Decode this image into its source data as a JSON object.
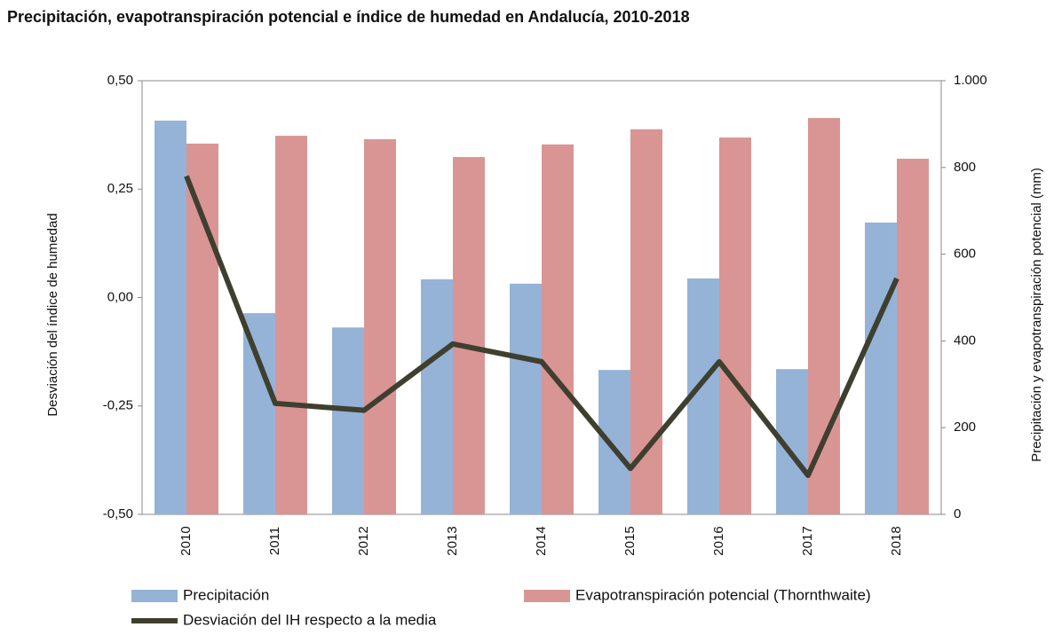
{
  "chart_data": {
    "type": "bar",
    "title": "Precipitación, evapotranspiración potencial e índice de humedad en Andalucía, 2010-2018",
    "ylabel": "Desviación del índice de humedad",
    "y2label": "Precipitación y evapotranspiración potencial (mm)",
    "categories": [
      "2010",
      "2011",
      "2012",
      "2013",
      "2014",
      "2015",
      "2016",
      "2017",
      "2018"
    ],
    "series": [
      {
        "name": "Precipitación",
        "type": "bar",
        "axis": "y2",
        "color": "#95b3d7",
        "values": [
          908,
          464,
          431,
          542,
          532,
          333,
          544,
          335,
          673
        ]
      },
      {
        "name": "Evapotranspiración potencial (Thornthwaite)",
        "type": "bar",
        "axis": "y2",
        "color": "#d99594",
        "values": [
          855,
          873,
          865,
          824,
          853,
          888,
          869,
          914,
          820
        ]
      },
      {
        "name": "Desviación del IH respecto a la media",
        "type": "line",
        "axis": "y",
        "color": "#3f3f2f",
        "values": [
          0.28,
          -0.244,
          -0.26,
          -0.107,
          -0.148,
          -0.394,
          -0.148,
          -0.41,
          0.044
        ]
      }
    ],
    "ylim": [
      -0.5,
      0.5
    ],
    "yticks": [
      {
        "value": 0.5,
        "label": "0,50"
      },
      {
        "value": 0.25,
        "label": "0,25"
      },
      {
        "value": 0,
        "label": "0,00"
      },
      {
        "value": -0.25,
        "label": "-0,25"
      },
      {
        "value": -0.5,
        "label": "-0,50"
      }
    ],
    "y2lim": [
      0,
      1000
    ],
    "y2ticks": [
      {
        "value": 1000,
        "label": "1.000"
      },
      800,
      600,
      400,
      200,
      0
    ],
    "grid": false
  }
}
